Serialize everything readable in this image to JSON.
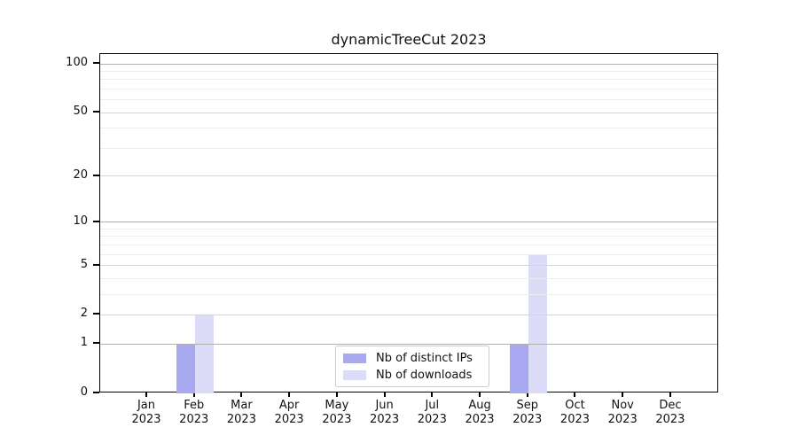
{
  "chart_data": {
    "type": "bar",
    "title": "dynamicTreeCut 2023",
    "categories": [
      "Jan",
      "Feb",
      "Mar",
      "Apr",
      "May",
      "Jun",
      "Jul",
      "Aug",
      "Sep",
      "Oct",
      "Nov",
      "Dec"
    ],
    "year_label": "2023",
    "series": [
      {
        "name": "Nb of distinct IPs",
        "color": "#a9a9f2",
        "values": [
          0,
          1,
          0,
          0,
          0,
          0,
          0,
          0,
          1,
          0,
          0,
          0
        ]
      },
      {
        "name": "Nb of downloads",
        "color": "#dcdcf8",
        "values": [
          0,
          2,
          0,
          0,
          0,
          0,
          0,
          0,
          6,
          0,
          0,
          0
        ]
      }
    ],
    "yscale": "log1p",
    "yticks": [
      0,
      1,
      2,
      5,
      10,
      20,
      50,
      100
    ],
    "minor_yticks": [
      3,
      4,
      6,
      7,
      8,
      9,
      30,
      40,
      60,
      70,
      80,
      90
    ],
    "ylim": [
      0,
      115
    ],
    "grid": true,
    "legend_position": "bottom-center"
  },
  "colors": {
    "axis": "#000000",
    "grid_decade": "#b0b0b0",
    "grid_major": "#d4d4d4",
    "grid_minor": "#ececec",
    "legend_border": "#cccccc",
    "text": "#111111"
  }
}
